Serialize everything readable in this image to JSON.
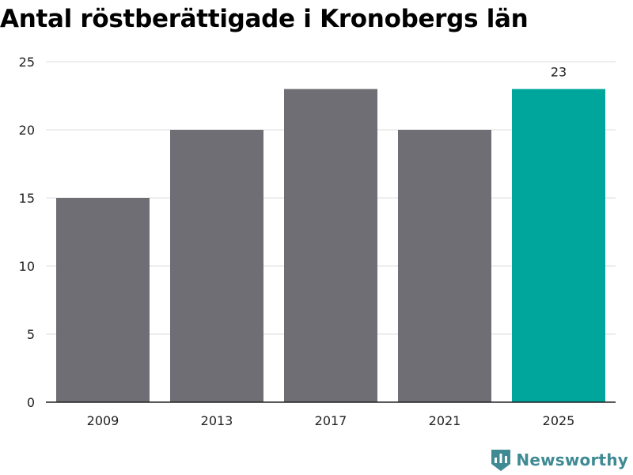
{
  "chart_data": {
    "type": "bar",
    "title": "Antal röstberättigade i Kronobergs län",
    "xlabel": "",
    "ylabel": "",
    "categories": [
      "2009",
      "2013",
      "2017",
      "2021",
      "2025"
    ],
    "values": [
      15,
      20,
      23,
      20,
      23
    ],
    "ylim": [
      0,
      25
    ],
    "yticks": [
      "0",
      "5",
      "10",
      "15",
      "20",
      "25"
    ],
    "data_labels": [
      "",
      "",
      "",
      "",
      "23"
    ],
    "grid": true,
    "colors": {
      "bar": "#6f6e74",
      "highlight": "#00a59c",
      "grid": "#dddddd",
      "axis": "#222222"
    },
    "highlight_index": 4
  },
  "brand": {
    "name": "Newsworthy",
    "icon": "bar-chart-shield-icon",
    "color": "#3f8a93"
  }
}
